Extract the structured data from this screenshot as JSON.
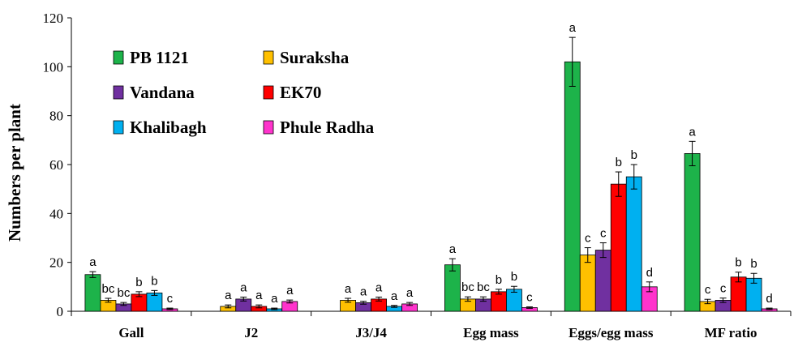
{
  "chart_data": {
    "type": "bar",
    "title": "",
    "xlabel": "",
    "ylabel": "Numbers per plant",
    "ylim": [
      0,
      120
    ],
    "yticks": [
      0,
      20,
      40,
      60,
      80,
      100,
      120
    ],
    "grid": false,
    "legend_placement": "top-left",
    "categories": [
      "Gall",
      "J2",
      "J3/J4",
      "Egg mass",
      "Eggs/egg mass",
      "MF ratio"
    ],
    "series": [
      {
        "name": "PB 1121",
        "color": "#1db34a",
        "values": [
          15,
          0,
          0,
          19,
          102,
          64.5
        ],
        "errors": [
          1.2,
          0,
          0,
          2.5,
          10,
          5
        ],
        "labels": [
          "a",
          "",
          "",
          "a",
          "a",
          "a"
        ]
      },
      {
        "name": "Suraksha",
        "color": "#ffc000",
        "values": [
          4.5,
          2,
          4.5,
          5,
          23,
          4
        ],
        "errors": [
          0.8,
          0.6,
          0.8,
          0.9,
          3,
          0.9
        ],
        "labels": [
          "bc",
          "a",
          "a",
          "bc",
          "c",
          "c"
        ]
      },
      {
        "name": "Vandana",
        "color": "#7030a0",
        "values": [
          3,
          5,
          3.5,
          5,
          25,
          4.5
        ],
        "errors": [
          0.6,
          0.8,
          0.6,
          0.9,
          3,
          0.9
        ],
        "labels": [
          "bc",
          "a",
          "a",
          "bc",
          "c",
          "c"
        ]
      },
      {
        "name": "EK70",
        "color": "#ff0000",
        "values": [
          7,
          2,
          5,
          8,
          52,
          14
        ],
        "errors": [
          1,
          0.6,
          0.8,
          1,
          5,
          2
        ],
        "labels": [
          "b",
          "a",
          "a",
          "b",
          "b",
          "b"
        ]
      },
      {
        "name": "Khalibagh",
        "color": "#00b0f0",
        "values": [
          7.5,
          1,
          2,
          9,
          55,
          13.5
        ],
        "errors": [
          1,
          0.3,
          0.4,
          1.2,
          5,
          2
        ],
        "labels": [
          "b",
          "a",
          "a",
          "b",
          "b",
          "b"
        ]
      },
      {
        "name": "Phule Radha",
        "color": "#ff33cc",
        "values": [
          1,
          4,
          3,
          1.5,
          10,
          1
        ],
        "errors": [
          0.3,
          0.6,
          0.6,
          0.3,
          2,
          0.3
        ],
        "labels": [
          "c",
          "a",
          "a",
          "c",
          "d",
          "d"
        ]
      }
    ]
  }
}
